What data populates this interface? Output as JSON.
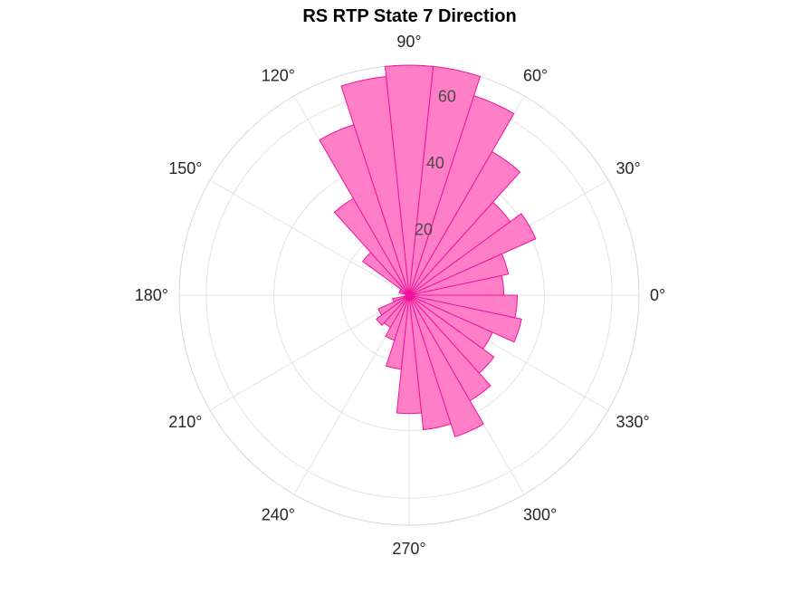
{
  "chart_data": {
    "type": "polar-histogram",
    "title": "RS  RTP State 7 Direction",
    "bin_width_deg": 12,
    "bin_start_deg": [
      0,
      12,
      24,
      36,
      48,
      60,
      72,
      84,
      96,
      108,
      120,
      132,
      144,
      156,
      168,
      180,
      192,
      204,
      216,
      228,
      240,
      252,
      264,
      276,
      288,
      300,
      312,
      324,
      336,
      348
    ],
    "counts": [
      28,
      30,
      41,
      37,
      49,
      62,
      68,
      68,
      65,
      53,
      33,
      17,
      3,
      3,
      1,
      1,
      5,
      10,
      12,
      11,
      14,
      22,
      35,
      40,
      44,
      36,
      31,
      27,
      34,
      32
    ],
    "rlim": [
      0,
      68
    ],
    "r_ticks": [
      20,
      40,
      60
    ],
    "r_tick_labels": [
      "20",
      "40",
      "60"
    ],
    "theta_ticks_deg": [
      0,
      30,
      60,
      90,
      120,
      150,
      180,
      210,
      240,
      270,
      300,
      330
    ],
    "theta_tick_labels": [
      "0°",
      "30°",
      "60°",
      "90°",
      "120°",
      "150°",
      "180°",
      "210°",
      "240°",
      "270°",
      "300°",
      "330°"
    ],
    "grid": true,
    "face_color": "#ff7fc6",
    "edge_color": "#f0139c"
  }
}
